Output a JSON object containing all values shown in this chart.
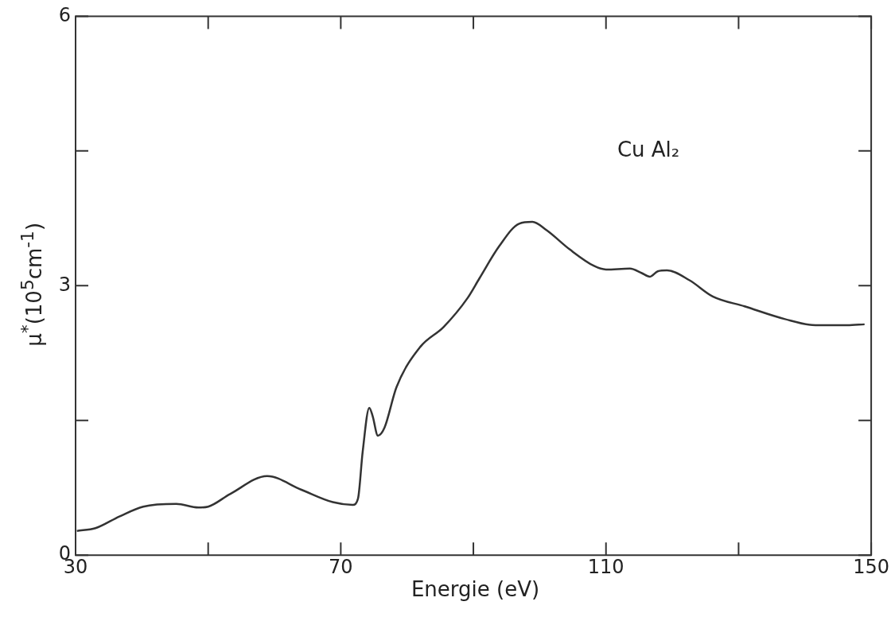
{
  "chart_data": {
    "type": "line",
    "xlabel": "Energie (eV)",
    "ylabel": "μ$^{*}$(10$^{5}$cm$^{-1}$)",
    "annotations": [
      "Cu Al₂"
    ],
    "x": [
      30.2,
      33,
      36.6,
      40.2,
      45.2,
      48.5,
      50,
      53.3,
      58.9,
      64,
      68.8,
      71.8,
      72.6,
      73.3,
      74.3,
      74.8,
      75.6,
      76.6,
      78.4,
      82,
      85.5,
      89.1,
      90.9,
      93.9,
      96.9,
      98.9,
      101,
      104.6,
      108.2,
      110,
      113.6,
      115.4,
      116.6,
      117.8,
      119.2,
      122.6,
      126.1,
      130.9,
      136.9,
      141.6,
      146.4,
      149
    ],
    "series": [
      {
        "color": "#333333",
        "values": [
          0.27,
          0.3,
          0.43,
          0.54,
          0.57,
          0.53,
          0.54,
          0.68,
          0.88,
          0.73,
          0.59,
          0.56,
          0.63,
          1.15,
          1.64,
          1.55,
          1.33,
          1.42,
          1.87,
          2.32,
          2.54,
          2.86,
          3.08,
          3.44,
          3.69,
          3.71,
          3.62,
          3.4,
          3.22,
          3.18,
          3.19,
          3.14,
          3.1,
          3.16,
          3.17,
          3.06,
          2.88,
          2.77,
          2.63,
          2.56,
          2.56,
          2.57
        ]
      }
    ],
    "xlim": [
      30,
      150
    ],
    "xticks": [
      30,
      {
        "value": 50,
        "label": null
      },
      70,
      {
        "value": 90,
        "label": null
      },
      110,
      {
        "value": 130,
        "label": null
      },
      150
    ],
    "ylim": [
      0,
      6
    ],
    "yticks": [
      0,
      {
        "value": 1.5,
        "label": null
      },
      3,
      {
        "value": 4.5,
        "label": null
      },
      6
    ],
    "grid": false,
    "legend": false,
    "marker": "none",
    "line_style": "solid"
  }
}
